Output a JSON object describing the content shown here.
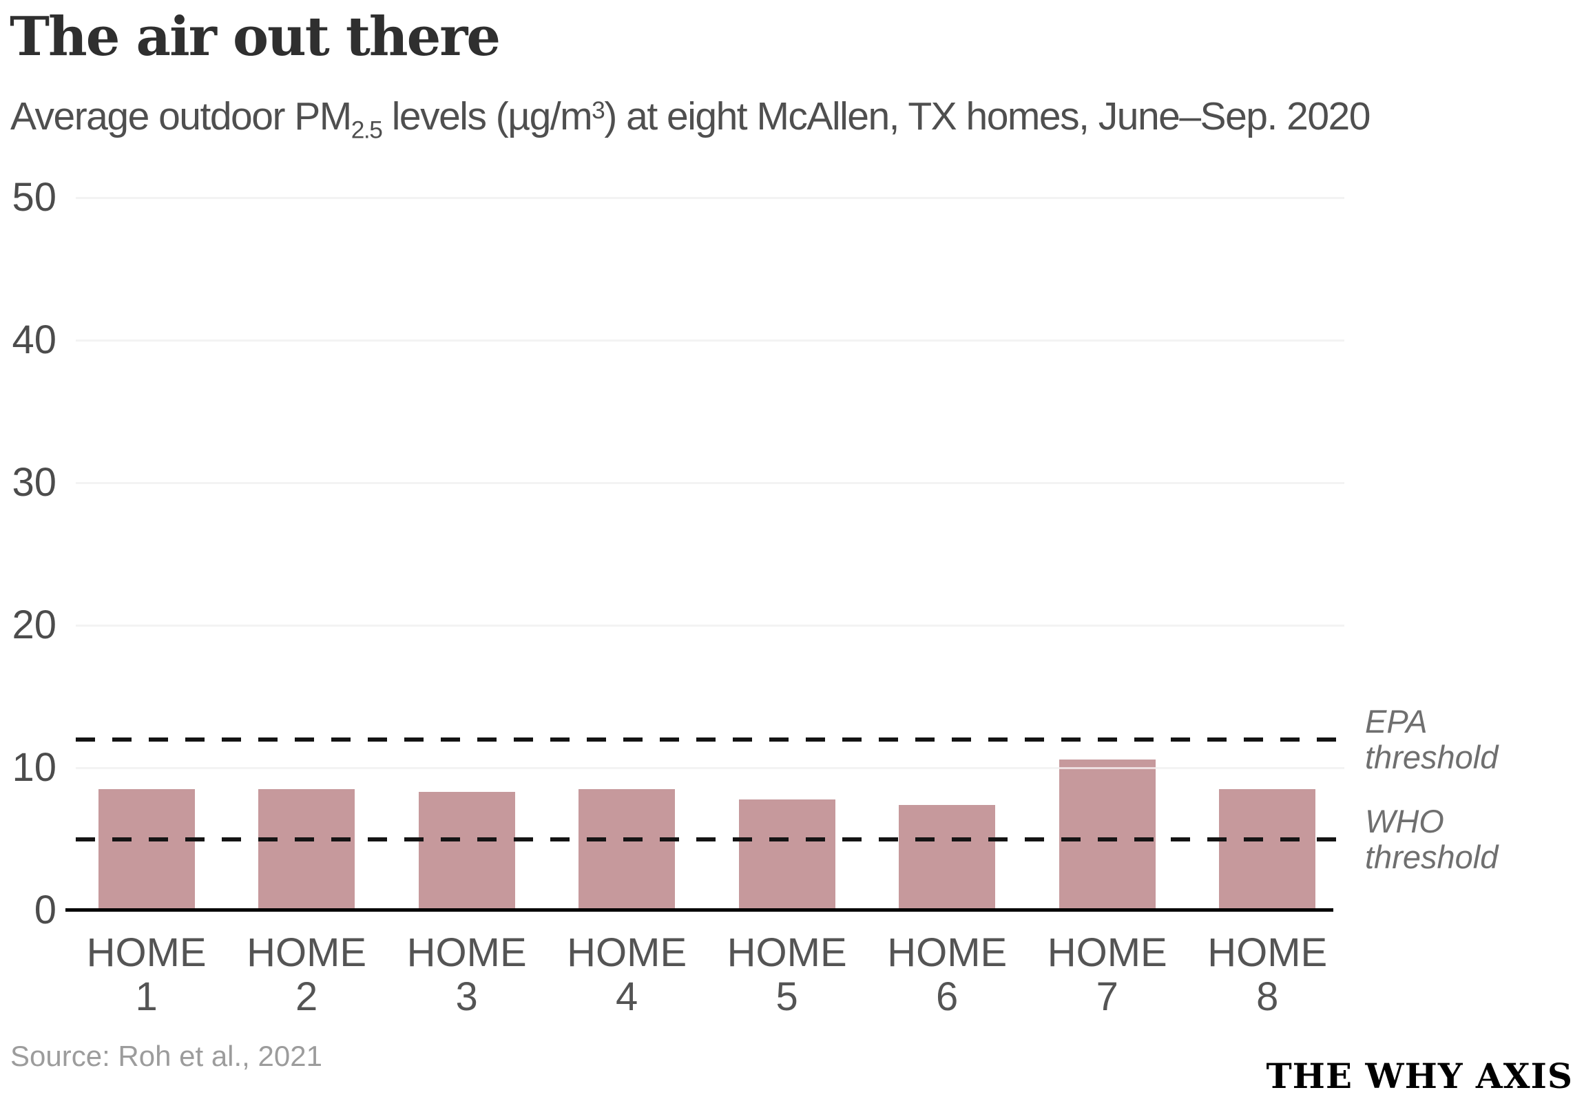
{
  "header": {
    "subtitle_parts": {
      "pre": "Average outdoor PM",
      "sub": "2.5",
      "mid": " levels (µg/m",
      "sup": "3",
      "post": ") at eight McAllen, TX homes, June–Sep. 2020"
    }
  },
  "chart_data": {
    "type": "bar",
    "title": "The air out there",
    "subtitle": "Average outdoor PM2.5 levels (µg/m³) at eight McAllen, TX homes, June–Sep. 2020",
    "categories": [
      "HOME 1",
      "HOME 2",
      "HOME 3",
      "HOME 4",
      "HOME 5",
      "HOME 6",
      "HOME 7",
      "HOME 8"
    ],
    "values": [
      8.5,
      8.5,
      8.3,
      8.5,
      7.8,
      7.4,
      10.6,
      8.5
    ],
    "xlabel": "",
    "ylabel": "",
    "ylim": [
      0,
      50
    ],
    "yticks": [
      0,
      10,
      20,
      30,
      40,
      50
    ],
    "grid": true,
    "legend": "none",
    "thresholds": [
      {
        "name": "EPA threshold",
        "value": 12
      },
      {
        "name": "WHO threshold",
        "value": 5
      }
    ],
    "colors": {
      "bar": "#c6999c",
      "gridline": "#d9d9d9",
      "threshold_line": "#141414",
      "axis_line": "#000000",
      "title_text": "#2f2f2f",
      "subtitle_text": "#4f4f4f",
      "tick_text": "#545454",
      "threshold_text": "#6f6f6f",
      "source_text": "#9c9c9c"
    }
  },
  "footer": {
    "source": "Source: Roh et al., 2021",
    "brand": "THE WHY AXIS"
  }
}
